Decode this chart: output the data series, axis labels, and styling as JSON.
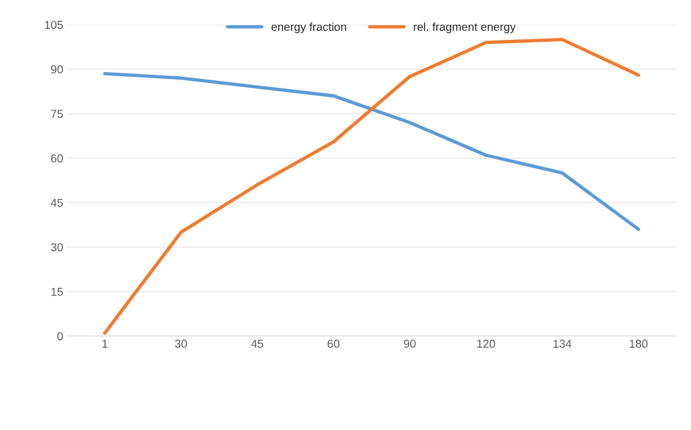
{
  "chart_data": {
    "type": "line",
    "categories": [
      "1",
      "30",
      "45",
      "60",
      "90",
      "120",
      "134",
      "180"
    ],
    "series": [
      {
        "name": "energy fraction",
        "color": "#5b9bd5",
        "values": [
          88.5,
          87,
          84,
          81,
          72,
          61,
          55,
          36
        ]
      },
      {
        "name": "rel. fragment energy",
        "color": "#ed7d31",
        "values": [
          1,
          35,
          51,
          65.5,
          87.5,
          99,
          100,
          88
        ]
      }
    ],
    "ylim": [
      0,
      105
    ],
    "yticks": [
      0,
      15,
      30,
      45,
      60,
      75,
      90,
      105
    ],
    "grid": "y",
    "legend": "top",
    "marker": "none",
    "line_style": "solid"
  }
}
